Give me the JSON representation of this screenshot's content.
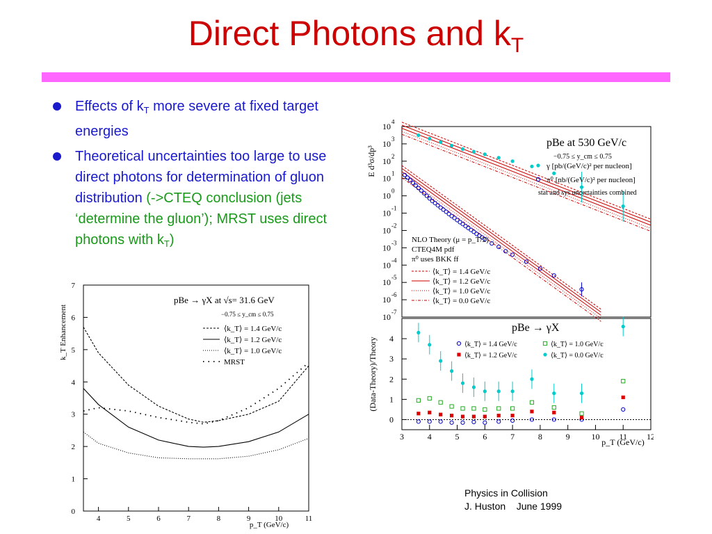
{
  "slide": {
    "title_main": "Direct Photons and k",
    "title_sub": "T",
    "bullets": [
      {
        "pre": "Effects of k",
        "sub": "T",
        "post": " more severe at fixed target energies",
        "green": "",
        "green_sub": "",
        "green_post": ""
      },
      {
        "pre": "Theoretical uncertainties too large to use  direct photons for determination of gluon distribution",
        "sub": "",
        "post": "",
        "green": " (->CTEQ conclusion (jets ‘determine the gluon’); MRST uses direct photons with k",
        "green_sub": "T",
        "green_post": ")"
      }
    ],
    "footer": [
      "Physics in Collision",
      "J. Huston    June 1999"
    ]
  },
  "colors": {
    "title": "#cc0000",
    "divider": "#ff66ff",
    "bullet_text": "#1a1acc",
    "green_text": "#1a9a1a"
  },
  "chart_data": [
    {
      "type": "line",
      "title": "pBe → γX at √s= 31.6 GeV",
      "cut": "−0.75 ≤ y_cm ≤ 0.75",
      "xlabel": "p_T (GeV/c)",
      "ylabel": "k_T Enhancement",
      "xlim": [
        3.5,
        11
      ],
      "ylim": [
        0,
        7
      ],
      "xticks": [
        4,
        5,
        6,
        7,
        8,
        9,
        10,
        11
      ],
      "yticks": [
        0,
        1,
        2,
        3,
        4,
        5,
        6,
        7
      ],
      "series": [
        {
          "name": "⟨k_T⟩ = 1.4 GeV/c",
          "style": "dashed",
          "x": [
            3.5,
            4,
            5,
            6,
            7,
            7.5,
            8,
            9,
            10,
            11
          ],
          "y": [
            5.7,
            4.9,
            3.9,
            3.25,
            2.85,
            2.75,
            2.8,
            3.0,
            3.4,
            4.5
          ]
        },
        {
          "name": "⟨k_T⟩ = 1.2 GeV/c",
          "style": "solid",
          "x": [
            3.5,
            4,
            5,
            6,
            7,
            7.5,
            8,
            9,
            10,
            11
          ],
          "y": [
            3.8,
            3.3,
            2.6,
            2.2,
            2.0,
            1.98,
            2.0,
            2.15,
            2.45,
            3.0
          ]
        },
        {
          "name": "⟨k_T⟩ = 1.0 GeV/c",
          "style": "dotted",
          "x": [
            3.5,
            4,
            5,
            6,
            7,
            8,
            9,
            10,
            11
          ],
          "y": [
            2.45,
            2.1,
            1.8,
            1.65,
            1.62,
            1.62,
            1.7,
            1.9,
            2.25
          ]
        },
        {
          "name": "MRST",
          "style": "sparse",
          "x": [
            3.5,
            4,
            5,
            6,
            7,
            7.5,
            8,
            9,
            10,
            11
          ],
          "y": [
            3.1,
            3.2,
            3.1,
            2.9,
            2.75,
            2.7,
            2.8,
            3.2,
            3.8,
            4.6
          ]
        }
      ]
    },
    {
      "type": "scatter",
      "title": "pBe at 530 GeV/c",
      "cut": "−0.75 ≤ y_cm ≤ 0.75",
      "ylabel": "E d³σ/dp³",
      "y_scale": "log",
      "ylim_exp": [
        -7,
        4
      ],
      "ytick_exps": [
        4,
        3,
        2,
        1,
        0,
        -1,
        -2,
        -3,
        -4,
        -5,
        -6,
        -7
      ],
      "xlim": [
        3,
        12
      ],
      "legend": [
        {
          "symbol": "filled-circle",
          "color": "#00cccc",
          "label": "γ   [pb/(GeV/c)² per nucleon]"
        },
        {
          "symbol": "open-circle",
          "color": "#0000cc",
          "label": "π⁰ [nb/(GeV/c)² per nucleon]"
        }
      ],
      "note": "stat and sys uncertainties combined",
      "theory": [
        "NLO Theory (μ = p_T/2)",
        "CTEQ4M pdf",
        "π⁰ uses BKK ff"
      ],
      "theory_curves": [
        "⟨k_T⟩ = 1.4 GeV/c",
        "⟨k_T⟩ = 1.2 GeV/c",
        "⟨k_T⟩ = 1.0 GeV/c",
        "⟨k_T⟩ = 0.0 GeV/c"
      ],
      "photon": {
        "x": [
          3.6,
          4.0,
          4.4,
          4.8,
          5.2,
          5.6,
          6.0,
          6.5,
          7.0,
          7.7,
          8.5,
          9.5,
          11.0
        ],
        "log10y": [
          3.5,
          3.3,
          3.1,
          2.9,
          2.7,
          2.55,
          2.4,
          2.2,
          2.0,
          1.7,
          1.3,
          0.5,
          -0.6
        ]
      },
      "pion": {
        "x": [
          3.1,
          3.2,
          3.3,
          3.4,
          3.5,
          3.6,
          3.7,
          3.8,
          3.9,
          4.0,
          4.1,
          4.2,
          4.3,
          4.4,
          4.5,
          4.6,
          4.7,
          4.8,
          4.9,
          5.0,
          5.1,
          5.2,
          5.3,
          5.4,
          5.5,
          5.6,
          5.7,
          5.8,
          5.9,
          6.0,
          6.25,
          6.5,
          6.75,
          7.0,
          7.5,
          8.0,
          8.5,
          9.5
        ],
        "log10y": [
          1.2,
          1.05,
          0.9,
          0.75,
          0.6,
          0.45,
          0.3,
          0.15,
          0.0,
          -0.15,
          -0.3,
          -0.42,
          -0.55,
          -0.68,
          -0.8,
          -0.92,
          -1.05,
          -1.17,
          -1.28,
          -1.4,
          -1.52,
          -1.63,
          -1.75,
          -1.86,
          -1.97,
          -2.08,
          -2.2,
          -2.3,
          -2.4,
          -2.5,
          -2.75,
          -2.95,
          -3.2,
          -3.4,
          -3.8,
          -4.2,
          -4.6,
          -5.4
        ]
      }
    },
    {
      "type": "scatter",
      "title": "pBe → γX",
      "xlabel": "p_T (GeV/c)",
      "ylabel": "(Data-Theory)/Theory",
      "xlim": [
        3,
        12
      ],
      "ylim": [
        -0.5,
        5
      ],
      "xticks": [
        3,
        4,
        5,
        6,
        7,
        8,
        9,
        10,
        11,
        12
      ],
      "yticks": [
        0,
        1,
        2,
        3,
        4
      ],
      "x": [
        3.6,
        4.0,
        4.4,
        4.8,
        5.2,
        5.6,
        6.0,
        6.5,
        7.0,
        7.7,
        8.5,
        9.5,
        11.0
      ],
      "series": [
        {
          "name": "⟨k_T⟩ = 1.4 GeV/c",
          "symbol": "open-circle",
          "color": "#0000cc",
          "values": [
            -0.1,
            -0.1,
            -0.1,
            -0.15,
            -0.15,
            -0.12,
            -0.15,
            -0.1,
            -0.05,
            0.0,
            0.0,
            0.0,
            0.5
          ]
        },
        {
          "name": "⟨k_T⟩ = 1.0 GeV/c",
          "symbol": "open-square",
          "color": "#22aa22",
          "values": [
            0.95,
            1.05,
            0.85,
            0.65,
            0.55,
            0.55,
            0.5,
            0.55,
            0.55,
            0.85,
            0.6,
            0.3,
            1.9
          ]
        },
        {
          "name": "⟨k_T⟩ = 1.2 GeV/c",
          "symbol": "filled-square",
          "color": "#dd0000",
          "values": [
            0.3,
            0.35,
            0.25,
            0.2,
            0.15,
            0.15,
            0.15,
            0.2,
            0.2,
            0.4,
            0.35,
            0.1,
            1.1
          ]
        },
        {
          "name": "⟨k_T⟩ = 0.0 GeV/c",
          "symbol": "filled-circle",
          "color": "#00cccc",
          "values": [
            4.3,
            3.7,
            2.9,
            2.4,
            1.8,
            1.6,
            1.4,
            1.4,
            1.4,
            2.0,
            1.3,
            1.3,
            4.6
          ]
        }
      ]
    }
  ]
}
